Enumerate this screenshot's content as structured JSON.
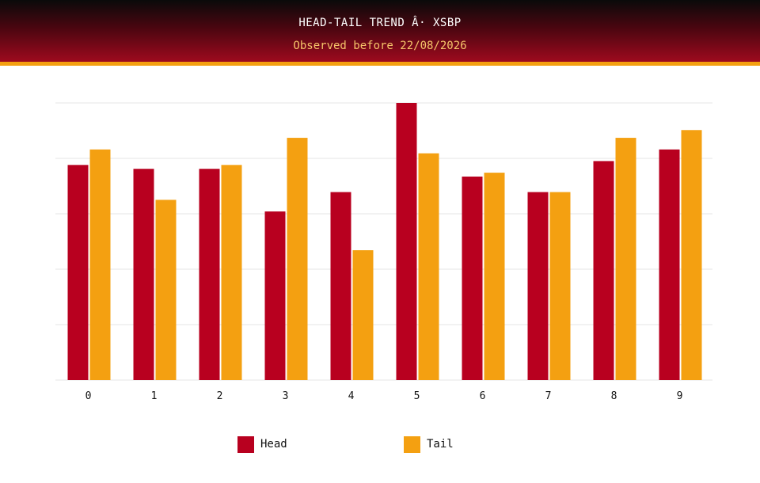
{
  "header": {
    "title": "HEAD-TAIL TREND Â· XSBP",
    "subtitle": "Observed before 22/08/2026"
  },
  "colors": {
    "head": "#b8001f",
    "tail": "#f4a011",
    "grid": "#e6e6e6"
  },
  "chart_data": {
    "type": "bar",
    "categories": [
      "0",
      "1",
      "2",
      "3",
      "4",
      "5",
      "6",
      "7",
      "8",
      "9"
    ],
    "series": [
      {
        "name": "Head",
        "values": [
          55.5,
          54.5,
          54.5,
          43.5,
          48.5,
          71.5,
          52.5,
          48.5,
          56.5,
          59.5
        ]
      },
      {
        "name": "Tail",
        "values": [
          59.5,
          46.5,
          55.5,
          62.5,
          33.5,
          58.5,
          53.5,
          48.5,
          62.5,
          64.5
        ]
      }
    ],
    "ylim": [
      0,
      71.5
    ],
    "grid": true,
    "y_ticks_shown": false,
    "legend_position": "bottom"
  }
}
